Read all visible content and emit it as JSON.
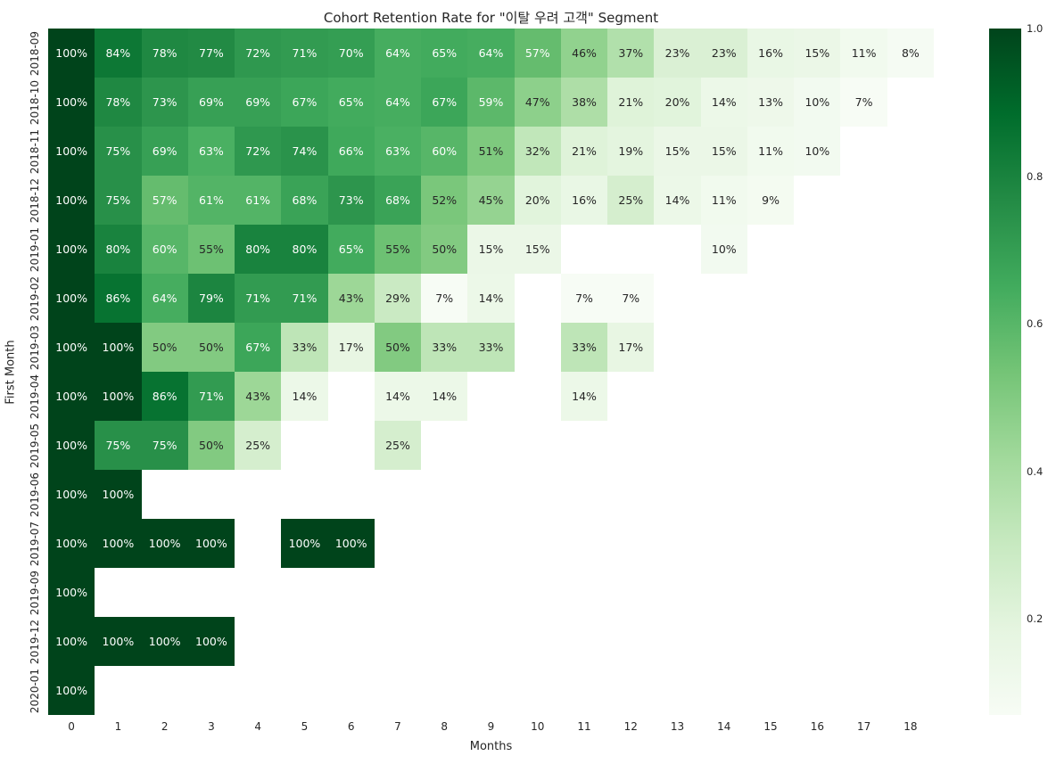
{
  "chart_data": {
    "type": "heatmap",
    "title": "Cohort Retention Rate for \"이탈 우려 고객\" Segment",
    "xlabel": "Months",
    "ylabel": "First Month",
    "x_ticks": [
      "0",
      "1",
      "2",
      "3",
      "4",
      "5",
      "6",
      "7",
      "8",
      "9",
      "10",
      "11",
      "12",
      "13",
      "14",
      "15",
      "16",
      "17",
      "18"
    ],
    "y_ticks": [
      "2018-09",
      "2018-10",
      "2018-11",
      "2018-12",
      "2019-01",
      "2019-02",
      "2019-03",
      "2019-04",
      "2019-05",
      "2019-06",
      "2019-07",
      "2019-09",
      "2019-12",
      "2020-01"
    ],
    "colormap": "Greens",
    "colormap_colors": [
      [
        247,
        252,
        245
      ],
      [
        229,
        245,
        224
      ],
      [
        199,
        233,
        192
      ],
      [
        161,
        217,
        155
      ],
      [
        116,
        196,
        118
      ],
      [
        65,
        171,
        93
      ],
      [
        35,
        139,
        69
      ],
      [
        0,
        109,
        44
      ],
      [
        0,
        68,
        27
      ]
    ],
    "vmin": 0.07,
    "vmax": 1.0,
    "annotation_format": "percent",
    "colorbar_ticks": [
      "1.0",
      "0.8",
      "0.6",
      "0.4",
      "0.2"
    ],
    "legend_position": "right",
    "grid": false,
    "values": [
      [
        1.0,
        0.84,
        0.78,
        0.77,
        0.72,
        0.71,
        0.7,
        0.64,
        0.65,
        0.64,
        0.57,
        0.46,
        0.37,
        0.23,
        0.23,
        0.16,
        0.15,
        0.11,
        0.08
      ],
      [
        1.0,
        0.78,
        0.73,
        0.69,
        0.69,
        0.67,
        0.65,
        0.64,
        0.67,
        0.59,
        0.47,
        0.38,
        0.21,
        0.2,
        0.14,
        0.13,
        0.1,
        0.07,
        null
      ],
      [
        1.0,
        0.75,
        0.69,
        0.63,
        0.72,
        0.74,
        0.66,
        0.63,
        0.6,
        0.51,
        0.32,
        0.21,
        0.19,
        0.15,
        0.15,
        0.11,
        0.1,
        null,
        null
      ],
      [
        1.0,
        0.75,
        0.57,
        0.61,
        0.61,
        0.68,
        0.73,
        0.68,
        0.52,
        0.45,
        0.2,
        0.16,
        0.25,
        0.14,
        0.11,
        0.09,
        null,
        null,
        null
      ],
      [
        1.0,
        0.8,
        0.6,
        0.55,
        0.8,
        0.8,
        0.65,
        0.55,
        0.5,
        0.15,
        0.15,
        null,
        null,
        null,
        0.1,
        null,
        null,
        null,
        null
      ],
      [
        1.0,
        0.86,
        0.64,
        0.79,
        0.71,
        0.71,
        0.43,
        0.29,
        0.07,
        0.14,
        null,
        0.07,
        0.07,
        null,
        null,
        null,
        null,
        null,
        null
      ],
      [
        1.0,
        1.0,
        0.5,
        0.5,
        0.67,
        0.33,
        0.17,
        0.5,
        0.33,
        0.33,
        null,
        0.33,
        0.17,
        null,
        null,
        null,
        null,
        null,
        null
      ],
      [
        1.0,
        1.0,
        0.86,
        0.71,
        0.43,
        0.14,
        null,
        0.14,
        0.14,
        null,
        null,
        0.14,
        null,
        null,
        null,
        null,
        null,
        null,
        null
      ],
      [
        1.0,
        0.75,
        0.75,
        0.5,
        0.25,
        null,
        null,
        0.25,
        null,
        null,
        null,
        null,
        null,
        null,
        null,
        null,
        null,
        null,
        null
      ],
      [
        1.0,
        1.0,
        null,
        null,
        null,
        null,
        null,
        null,
        null,
        null,
        null,
        null,
        null,
        null,
        null,
        null,
        null,
        null,
        null
      ],
      [
        1.0,
        1.0,
        1.0,
        1.0,
        null,
        1.0,
        1.0,
        null,
        null,
        null,
        null,
        null,
        null,
        null,
        null,
        null,
        null,
        null,
        null
      ],
      [
        1.0,
        null,
        null,
        null,
        null,
        null,
        null,
        null,
        null,
        null,
        null,
        null,
        null,
        null,
        null,
        null,
        null,
        null,
        null
      ],
      [
        1.0,
        1.0,
        1.0,
        1.0,
        null,
        null,
        null,
        null,
        null,
        null,
        null,
        null,
        null,
        null,
        null,
        null,
        null,
        null,
        null
      ],
      [
        1.0,
        null,
        null,
        null,
        null,
        null,
        null,
        null,
        null,
        null,
        null,
        null,
        null,
        null,
        null,
        null,
        null,
        null,
        null
      ]
    ]
  }
}
